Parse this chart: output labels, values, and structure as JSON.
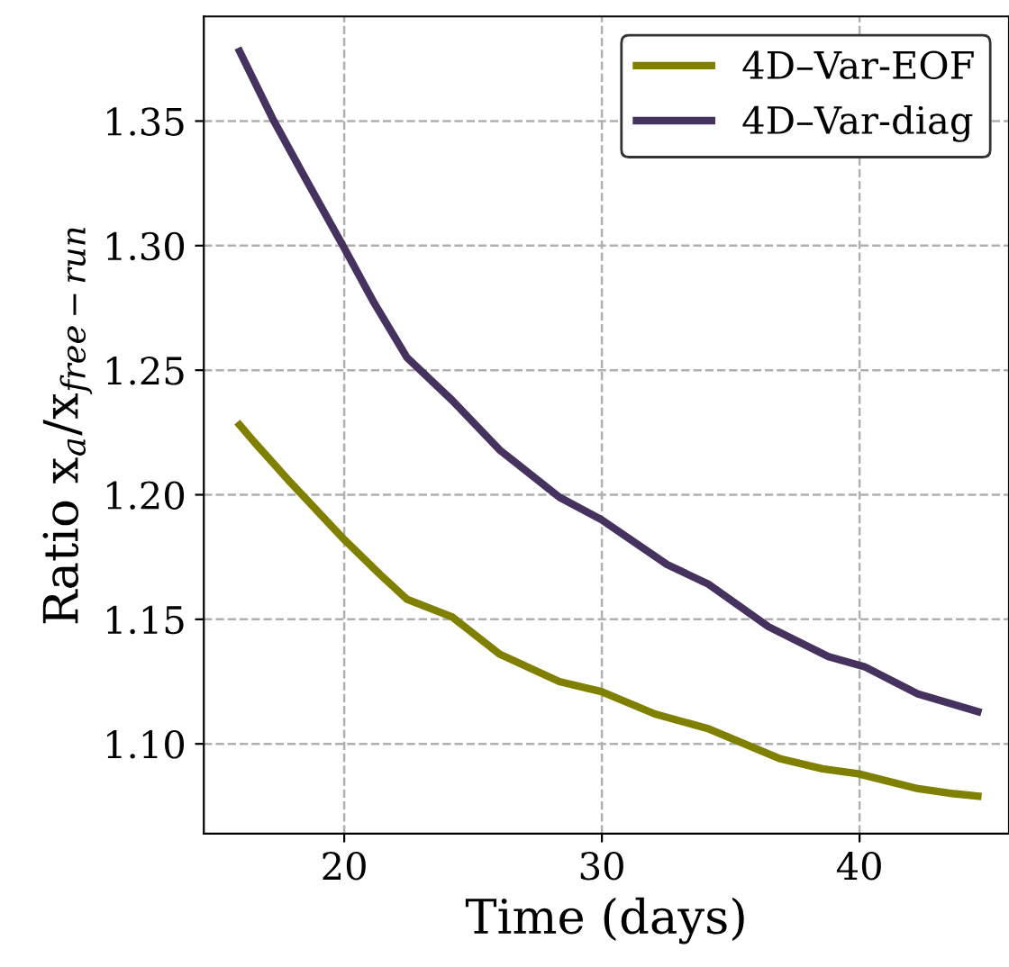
{
  "chart_data": {
    "type": "line",
    "xlabel": "Time (days)",
    "ylabel": "Ratio x$_{a}$/x$_{free−run}$",
    "xlim": [
      14.55,
      45.8
    ],
    "ylim": [
      1.064,
      1.392
    ],
    "xticks": [
      20,
      30,
      40
    ],
    "yticks": [
      {
        "value": 1.1,
        "label": "1.10"
      },
      1.15,
      {
        "value": 1.2,
        "label": "1.20"
      },
      1.25,
      {
        "value": 1.3,
        "label": "1.30"
      },
      1.35
    ],
    "grid": true,
    "legend": "top right",
    "line_style": "solid",
    "marker": "none",
    "series": [
      {
        "name": "4D–Var-EOF",
        "color": "#808000",
        "x": [
          15.94,
          16.52,
          17.91,
          20.0,
          21.39,
          22.44,
          24.18,
          26.03,
          28.35,
          29.98,
          32.06,
          34.15,
          36.93,
          38.56,
          39.95,
          42.27,
          43.66,
          44.59
        ],
        "values": [
          1.228,
          1.221,
          1.205,
          1.182,
          1.168,
          1.158,
          1.151,
          1.136,
          1.125,
          1.121,
          1.112,
          1.106,
          1.094,
          1.09,
          1.088,
          1.082,
          1.08,
          1.079
        ]
      },
      {
        "name": "4D–Var-diag",
        "color": "#45325f",
        "x": [
          15.94,
          17.22,
          18.49,
          20.0,
          21.16,
          22.44,
          24.18,
          26.03,
          28.35,
          29.98,
          32.53,
          34.15,
          36.47,
          38.79,
          40.19,
          42.27,
          44.59
        ],
        "values": [
          1.378,
          1.351,
          1.327,
          1.299,
          1.277,
          1.255,
          1.238,
          1.218,
          1.199,
          1.19,
          1.172,
          1.164,
          1.147,
          1.135,
          1.131,
          1.12,
          1.113
        ]
      }
    ]
  }
}
